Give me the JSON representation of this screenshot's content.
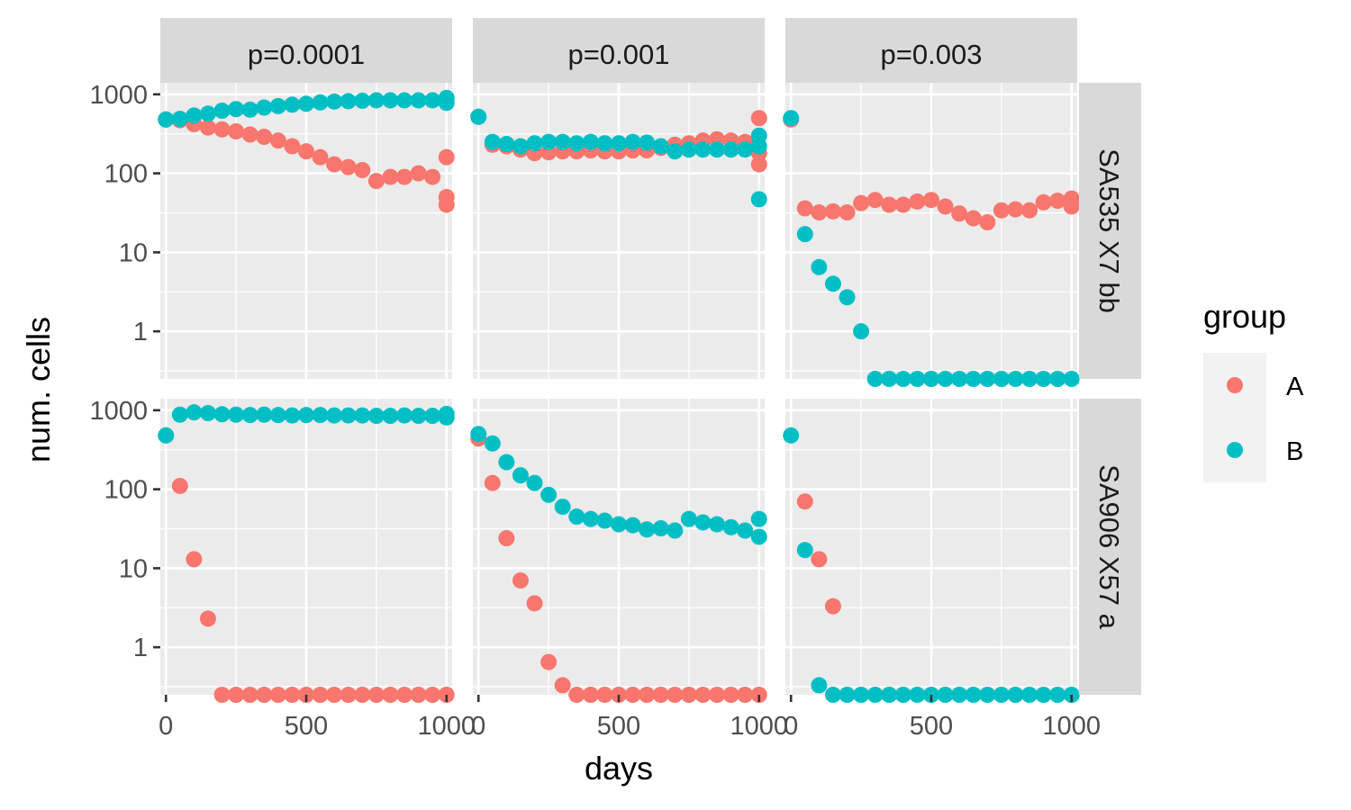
{
  "chart_data": {
    "type": "scatter",
    "xlabel": "days",
    "ylabel": "num. cells",
    "x_range": [
      -20,
      1020
    ],
    "y_scale": "log10",
    "y_range": [
      0.25,
      1400
    ],
    "x_ticks": [
      0,
      500,
      1000
    ],
    "x_tick_labels": [
      "0",
      "500",
      "1000"
    ],
    "y_ticks": [
      1,
      10,
      100,
      1000
    ],
    "y_tick_labels": [
      "1",
      "10",
      "100",
      "1000"
    ],
    "grid": true,
    "facet_columns": [
      "p=0.0001",
      "p=0.001",
      "p=0.003"
    ],
    "facet_rows": [
      "SA535 X7 bb",
      "SA906 X57 a"
    ],
    "legend": {
      "title": "group",
      "position": "right",
      "entries": [
        {
          "name": "A",
          "color": "#F8766D"
        },
        {
          "name": "B",
          "color": "#00BFC4"
        }
      ]
    },
    "panels": [
      {
        "row": 0,
        "col": 0,
        "series": [
          {
            "name": "A",
            "x": [
              0,
              50,
              100,
              150,
              200,
              250,
              300,
              350,
              400,
              450,
              500,
              550,
              600,
              650,
              700,
              750,
              800,
              850,
              900,
              950,
              1000,
              1000,
              1000
            ],
            "y": [
              480,
              470,
              420,
              380,
              360,
              340,
              310,
              290,
              260,
              220,
              190,
              160,
              130,
              120,
              110,
              80,
              90,
              90,
              100,
              90,
              160,
              50,
              40
            ]
          },
          {
            "name": "B",
            "x": [
              0,
              50,
              100,
              150,
              200,
              250,
              300,
              350,
              400,
              450,
              500,
              550,
              600,
              650,
              700,
              750,
              800,
              850,
              900,
              950,
              1000,
              1000
            ],
            "y": [
              480,
              490,
              540,
              570,
              620,
              650,
              640,
              680,
              710,
              740,
              760,
              790,
              810,
              820,
              830,
              840,
              840,
              840,
              840,
              840,
              900,
              780
            ]
          }
        ]
      },
      {
        "row": 0,
        "col": 1,
        "series": [
          {
            "name": "A",
            "x": [
              0,
              50,
              100,
              150,
              200,
              250,
              300,
              350,
              400,
              450,
              500,
              550,
              600,
              650,
              700,
              750,
              800,
              850,
              900,
              950,
              1000,
              1000,
              1000
            ],
            "y": [
              520,
              230,
              220,
              200,
              180,
              185,
              190,
              190,
              195,
              190,
              190,
              195,
              195,
              210,
              230,
              240,
              260,
              270,
              260,
              250,
              500,
              180,
              130
            ]
          },
          {
            "name": "B",
            "x": [
              0,
              50,
              100,
              150,
              200,
              250,
              300,
              350,
              400,
              450,
              500,
              550,
              600,
              650,
              700,
              750,
              800,
              850,
              900,
              950,
              1000,
              1000,
              1000
            ],
            "y": [
              520,
              250,
              235,
              220,
              240,
              250,
              250,
              240,
              250,
              240,
              240,
              250,
              245,
              220,
              190,
              200,
              200,
              200,
              200,
              200,
              300,
              220,
              47
            ]
          }
        ]
      },
      {
        "row": 0,
        "col": 2,
        "series": [
          {
            "name": "A",
            "x": [
              0,
              50,
              100,
              150,
              200,
              250,
              300,
              350,
              400,
              450,
              500,
              550,
              600,
              650,
              700,
              750,
              800,
              850,
              900,
              950,
              1000,
              1000
            ],
            "y": [
              480,
              36,
              32,
              33,
              32,
              42,
              46,
              40,
              40,
              44,
              46,
              38,
              31,
              27,
              24,
              34,
              35,
              34,
              43,
              45,
              48,
              38
            ]
          },
          {
            "name": "B",
            "x": [
              0,
              50,
              100,
              150,
              200,
              250,
              300,
              350,
              400,
              450,
              500,
              550,
              600,
              650,
              700,
              750,
              800,
              850,
              900,
              950,
              1000
            ],
            "y": [
              500,
              17,
              6.5,
              4,
              2.7,
              1,
              0.25,
              0.25,
              0.25,
              0.25,
              0.25,
              0.25,
              0.25,
              0.25,
              0.25,
              0.25,
              0.25,
              0.25,
              0.25,
              0.25,
              0.25
            ]
          }
        ]
      },
      {
        "row": 1,
        "col": 0,
        "series": [
          {
            "name": "A",
            "x": [
              0,
              50,
              100,
              150,
              200,
              250,
              300,
              350,
              400,
              450,
              500,
              550,
              600,
              650,
              700,
              750,
              800,
              850,
              900,
              950,
              1000
            ],
            "y": [
              480,
              110,
              13,
              2.3,
              0.25,
              0.25,
              0.25,
              0.25,
              0.25,
              0.25,
              0.25,
              0.25,
              0.25,
              0.25,
              0.25,
              0.25,
              0.25,
              0.25,
              0.25,
              0.25,
              0.25
            ]
          },
          {
            "name": "B",
            "x": [
              0,
              50,
              100,
              150,
              200,
              250,
              300,
              350,
              400,
              450,
              500,
              550,
              600,
              650,
              700,
              750,
              800,
              850,
              900,
              950,
              1000,
              1000
            ],
            "y": [
              480,
              880,
              940,
              920,
              890,
              880,
              870,
              880,
              870,
              860,
              870,
              870,
              860,
              860,
              860,
              850,
              850,
              860,
              850,
              850,
              900,
              810
            ]
          }
        ]
      },
      {
        "row": 1,
        "col": 1,
        "series": [
          {
            "name": "A",
            "x": [
              0,
              50,
              100,
              150,
              200,
              250,
              300,
              350,
              400,
              450,
              500,
              550,
              600,
              650,
              700,
              750,
              800,
              850,
              900,
              950,
              1000
            ],
            "y": [
              440,
              120,
              24,
              7,
              3.6,
              0.65,
              0.33,
              0.25,
              0.25,
              0.25,
              0.25,
              0.25,
              0.25,
              0.25,
              0.25,
              0.25,
              0.25,
              0.25,
              0.25,
              0.25,
              0.25
            ]
          },
          {
            "name": "B",
            "x": [
              0,
              50,
              100,
              150,
              200,
              250,
              300,
              350,
              400,
              450,
              500,
              550,
              600,
              650,
              700,
              750,
              800,
              850,
              900,
              950,
              1000,
              1000
            ],
            "y": [
              500,
              380,
              220,
              150,
              120,
              85,
              60,
              45,
              42,
              40,
              36,
              35,
              31,
              32,
              30,
              42,
              38,
              36,
              33,
              30,
              42,
              25
            ]
          }
        ]
      },
      {
        "row": 1,
        "col": 2,
        "series": [
          {
            "name": "A",
            "x": [
              50,
              100,
              150
            ],
            "y": [
              70,
              13,
              3.3
            ]
          },
          {
            "name": "B",
            "x": [
              0,
              50,
              100,
              150,
              200,
              250,
              300,
              350,
              400,
              450,
              500,
              550,
              600,
              650,
              700,
              750,
              800,
              850,
              900,
              950,
              1000
            ],
            "y": [
              480,
              17,
              0.33,
              0.25,
              0.25,
              0.25,
              0.25,
              0.25,
              0.25,
              0.25,
              0.25,
              0.25,
              0.25,
              0.25,
              0.25,
              0.25,
              0.25,
              0.25,
              0.25,
              0.25,
              0.25
            ]
          }
        ]
      }
    ]
  }
}
